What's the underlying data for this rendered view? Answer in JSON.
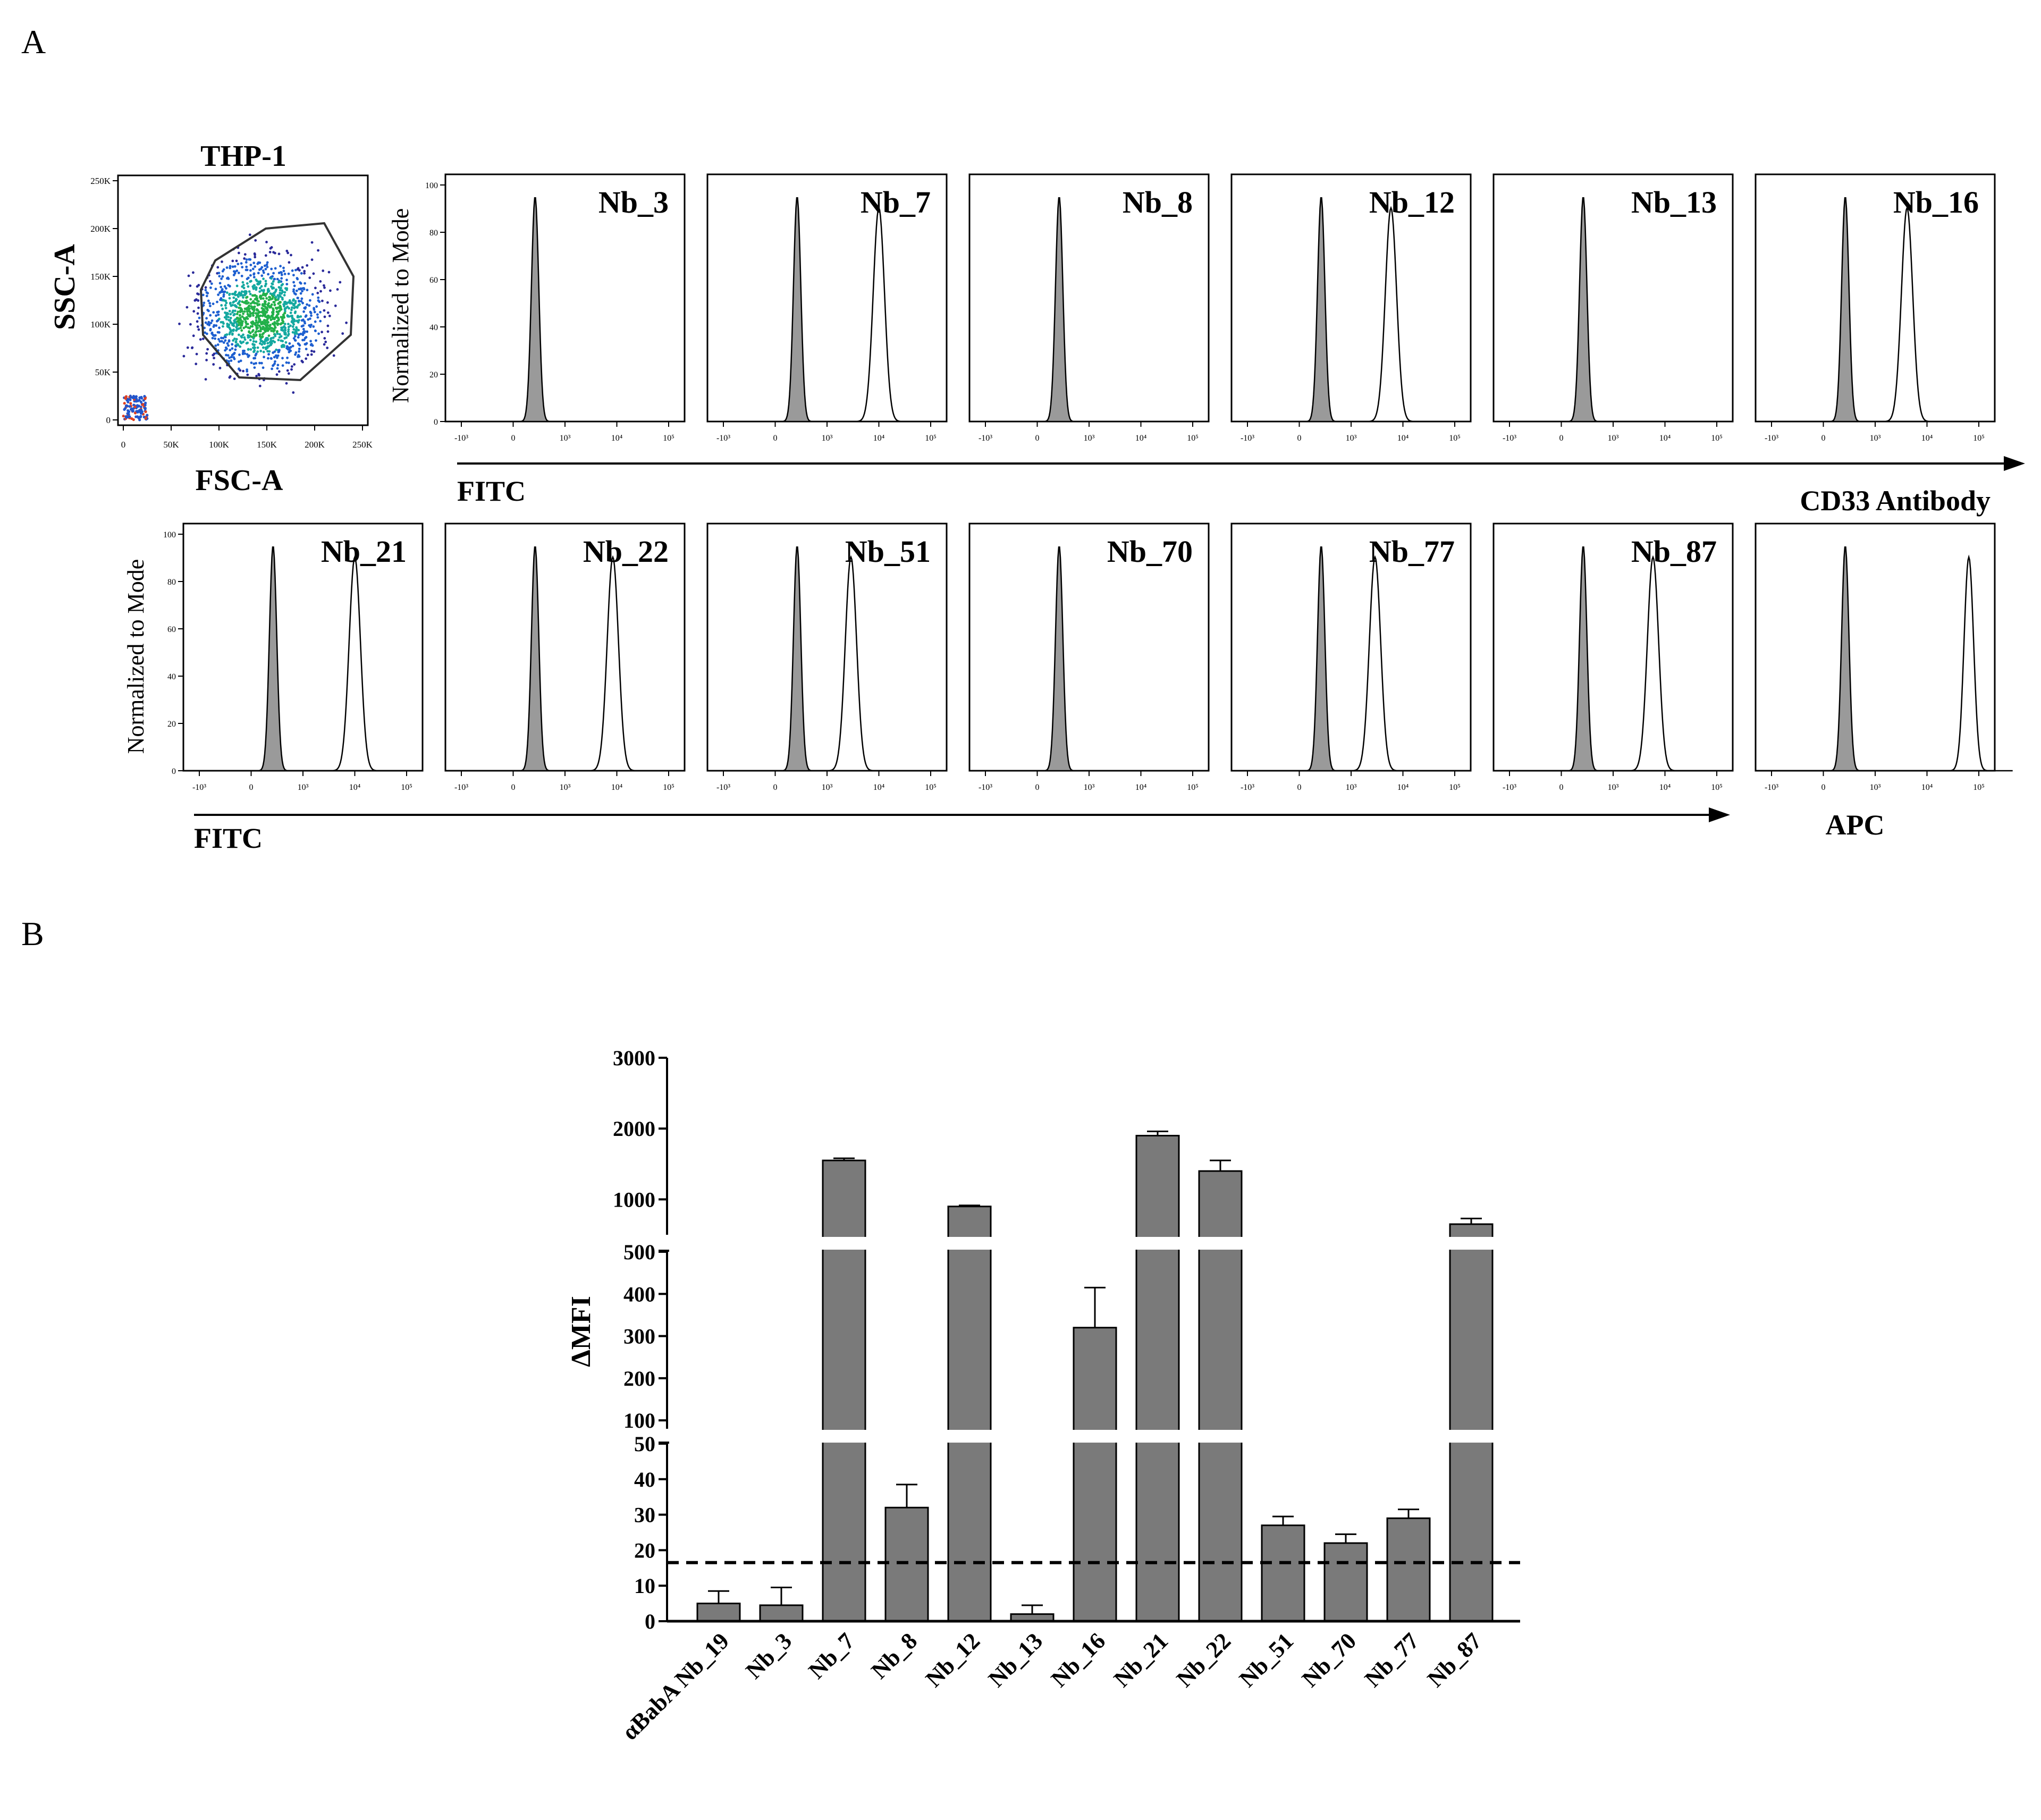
{
  "panel_a": {
    "letter": "A",
    "scatter": {
      "title": "THP-1",
      "xlabel": "FSC-A",
      "ylabel": "SSC-A",
      "x_ticks": [
        "0",
        "50K",
        "100K",
        "150K",
        "200K",
        "250K"
      ],
      "y_ticks": [
        "0",
        "50K",
        "100K",
        "150K",
        "200K",
        "250K"
      ]
    },
    "hist_ylabel": "Normalized to Mode",
    "hist_y_ticks": [
      "0",
      "20",
      "40",
      "60",
      "80",
      "100"
    ],
    "hist_x_ticks": [
      "-10³",
      "0",
      "10³",
      "10⁴",
      "10⁵"
    ],
    "row1_xlabel": "FITC",
    "row2_xlabel": "FITC",
    "cd33_label": "CD33 Antibody",
    "apc_label": "APC",
    "colors": {
      "control_fill": "#9a9a9a",
      "line": "#000000"
    },
    "row1": [
      {
        "name": "Nb_3",
        "peak_log": null
      },
      {
        "name": "Nb_7",
        "peak_log": 3.3
      },
      {
        "name": "Nb_8",
        "peak_log": null
      },
      {
        "name": "Nb_12",
        "peak_log": 3.0
      },
      {
        "name": "Nb_13",
        "peak_log": null
      },
      {
        "name": "Nb_16",
        "peak_log": 2.8
      }
    ],
    "row2": [
      {
        "name": "Nb_21",
        "peak_log": 3.3
      },
      {
        "name": "Nb_22",
        "peak_log": 3.2
      },
      {
        "name": "Nb_51",
        "peak_log": 2.6
      },
      {
        "name": "Nb_70",
        "peak_log": null
      },
      {
        "name": "Nb_77",
        "peak_log": 2.6
      },
      {
        "name": "Nb_87",
        "peak_log": 3.0
      },
      {
        "name": "",
        "peak_log": 4.35
      }
    ]
  },
  "panel_b": {
    "letter": "B"
  },
  "chart_data": {
    "type": "bar",
    "title": "",
    "ylabel": "ΔMFI",
    "xlabel": "",
    "categories": [
      "αBabA Nb_19",
      "Nb_3",
      "Nb_7",
      "Nb_8",
      "Nb_12",
      "Nb_13",
      "Nb_16",
      "Nb_21",
      "Nb_22",
      "Nb_51",
      "Nb_70",
      "Nb_77",
      "Nb_87"
    ],
    "values": [
      5,
      4.5,
      1550,
      32,
      900,
      2,
      320,
      1900,
      1400,
      27,
      22,
      29,
      650
    ],
    "errors": [
      3.5,
      5,
      30,
      6.5,
      15,
      2.5,
      95,
      60,
      150,
      2.5,
      2.5,
      2.5,
      80
    ],
    "threshold": 16.5,
    "broken_axis": [
      {
        "range": [
          0,
          50
        ],
        "ticks": [
          "0",
          "10",
          "20",
          "30",
          "40",
          "50"
        ]
      },
      {
        "range": [
          80,
          500
        ],
        "ticks": [
          "100",
          "200",
          "300",
          "400",
          "500"
        ]
      },
      {
        "range": [
          500,
          3000
        ],
        "ticks": [
          "1000",
          "2000",
          "3000"
        ]
      }
    ],
    "bar_color": "#7a7a7a",
    "grid": false,
    "legend": "none"
  }
}
